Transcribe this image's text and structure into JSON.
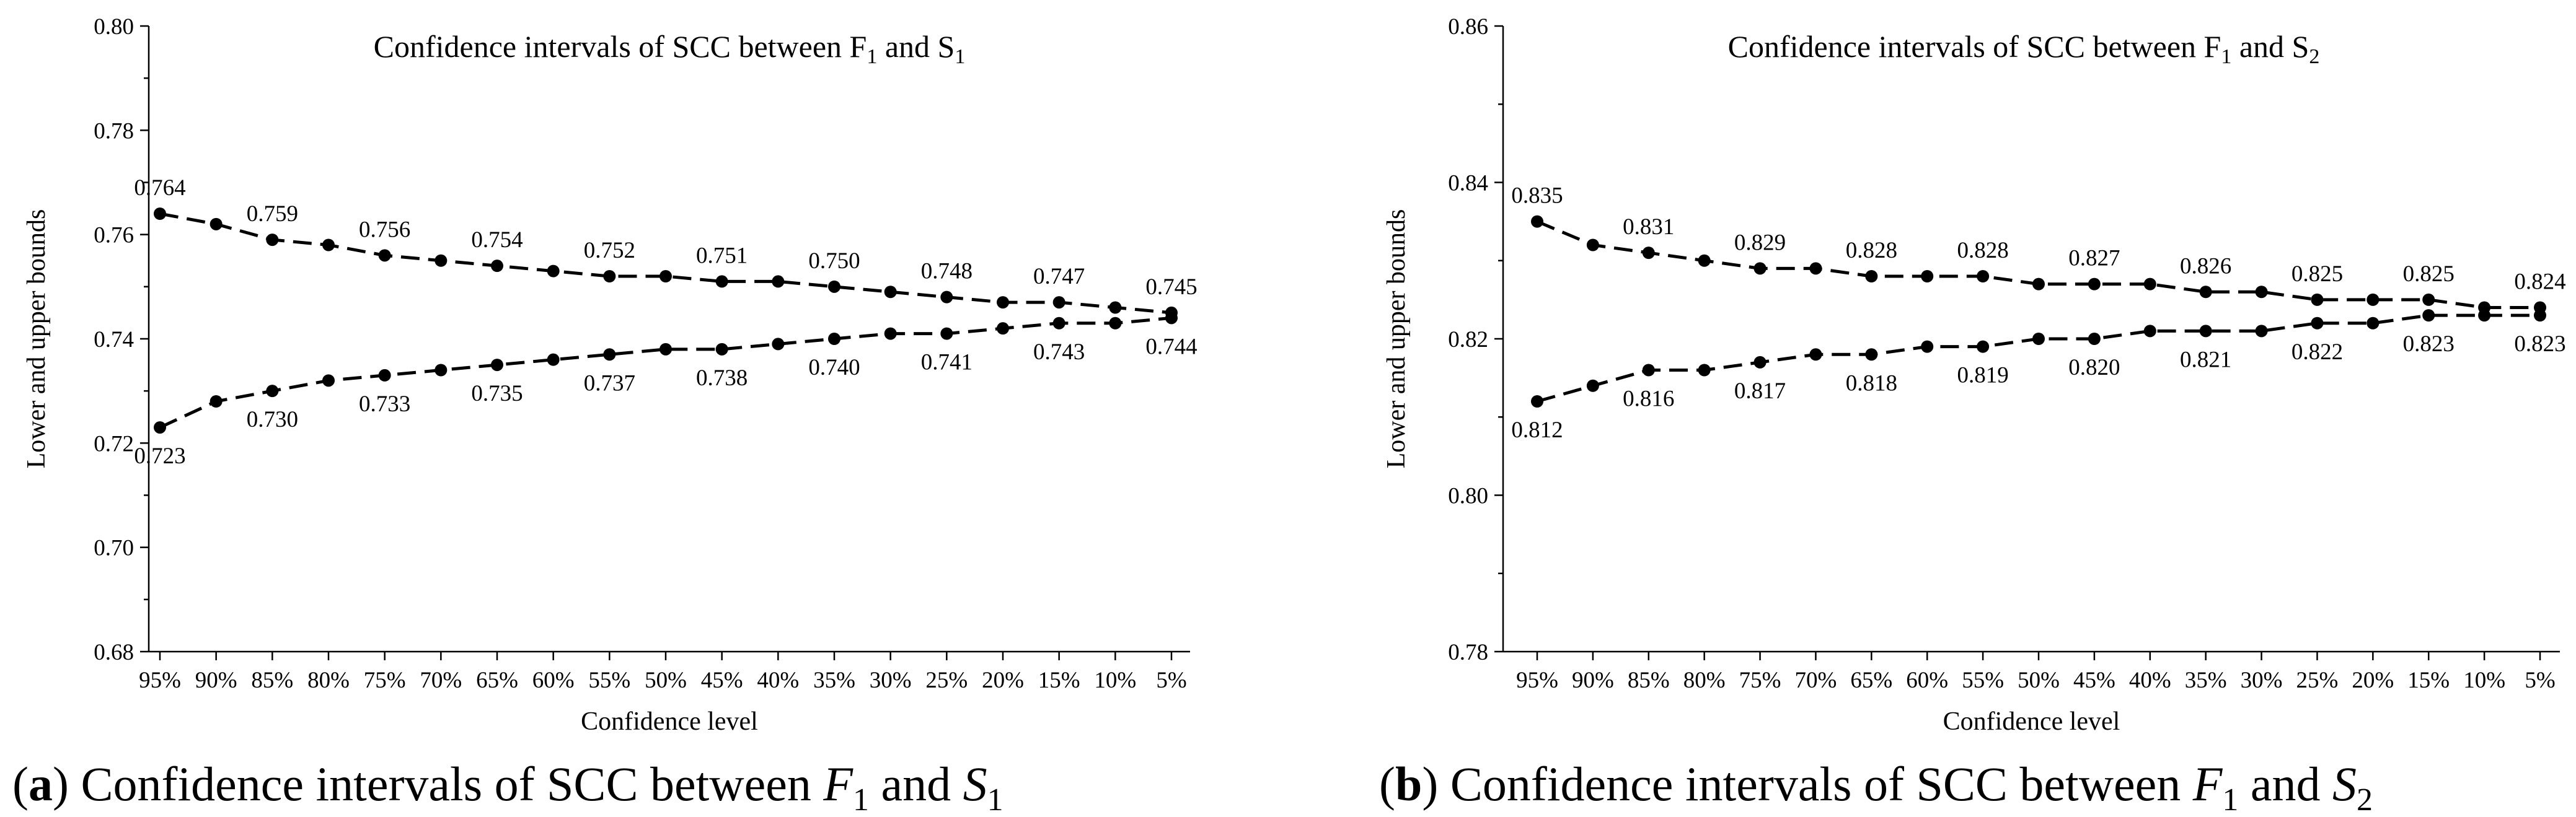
{
  "chart_data": [
    {
      "type": "line",
      "title": "Confidence intervals of SCC between F1 and S1",
      "title_parts": {
        "prefix": "Confidence intervals of SCC between F",
        "sub1": "1",
        "mid": " and S",
        "sub2": "1"
      },
      "xlabel": "Confidence level",
      "ylabel": "Lower and upper bounds",
      "categories": [
        "95%",
        "90%",
        "85%",
        "80%",
        "75%",
        "70%",
        "65%",
        "60%",
        "55%",
        "50%",
        "45%",
        "40%",
        "35%",
        "30%",
        "25%",
        "20%",
        "15%",
        "10%",
        "5%"
      ],
      "ylim": [
        0.68,
        0.8
      ],
      "yticks": [
        "0.68",
        "0.70",
        "0.72",
        "0.74",
        "0.76",
        "0.78",
        "0.80"
      ],
      "series": [
        {
          "name": "Upper bound",
          "values": [
            0.764,
            0.762,
            0.759,
            0.758,
            0.756,
            0.755,
            0.754,
            0.753,
            0.752,
            0.752,
            0.751,
            0.751,
            0.75,
            0.749,
            0.748,
            0.747,
            0.747,
            0.746,
            0.745
          ]
        },
        {
          "name": "Lower bound",
          "values": [
            0.723,
            0.728,
            0.73,
            0.732,
            0.733,
            0.734,
            0.735,
            0.736,
            0.737,
            0.738,
            0.738,
            0.739,
            0.74,
            0.741,
            0.741,
            0.742,
            0.743,
            0.743,
            0.744
          ]
        }
      ],
      "data_labels": [
        {
          "series": 0,
          "index": 0,
          "text": "0.764"
        },
        {
          "series": 0,
          "index": 2,
          "text": "0.759"
        },
        {
          "series": 0,
          "index": 4,
          "text": "0.756"
        },
        {
          "series": 0,
          "index": 6,
          "text": "0.754"
        },
        {
          "series": 0,
          "index": 8,
          "text": "0.752"
        },
        {
          "series": 0,
          "index": 10,
          "text": "0.751"
        },
        {
          "series": 0,
          "index": 12,
          "text": "0.750"
        },
        {
          "series": 0,
          "index": 14,
          "text": "0.748"
        },
        {
          "series": 0,
          "index": 16,
          "text": "0.747"
        },
        {
          "series": 0,
          "index": 18,
          "text": "0.745"
        },
        {
          "series": 1,
          "index": 0,
          "text": "0.723"
        },
        {
          "series": 1,
          "index": 2,
          "text": "0.730"
        },
        {
          "series": 1,
          "index": 4,
          "text": "0.733"
        },
        {
          "series": 1,
          "index": 6,
          "text": "0.735"
        },
        {
          "series": 1,
          "index": 8,
          "text": "0.737"
        },
        {
          "series": 1,
          "index": 10,
          "text": "0.738"
        },
        {
          "series": 1,
          "index": 12,
          "text": "0.740"
        },
        {
          "series": 1,
          "index": 14,
          "text": "0.741"
        },
        {
          "series": 1,
          "index": 16,
          "text": "0.743"
        },
        {
          "series": 1,
          "index": 18,
          "text": "0.744"
        }
      ],
      "caption": {
        "label": "a",
        "text": "Confidence intervals of SCC between",
        "var1": "F",
        "sub1": "1",
        "and": "and",
        "var2": "S",
        "sub2": "1"
      }
    },
    {
      "type": "line",
      "title": "Confidence intervals of SCC between F1 and S2",
      "title_parts": {
        "prefix": "Confidence intervals of SCC between F",
        "sub1": "1",
        "mid": " and S",
        "sub2": "2"
      },
      "xlabel": "Confidence level",
      "ylabel": "Lower and upper bounds",
      "categories": [
        "95%",
        "90%",
        "85%",
        "80%",
        "75%",
        "70%",
        "65%",
        "60%",
        "55%",
        "50%",
        "45%",
        "40%",
        "35%",
        "30%",
        "25%",
        "20%",
        "15%",
        "10%",
        "5%"
      ],
      "ylim": [
        0.78,
        0.86
      ],
      "yticks": [
        "0.78",
        "0.80",
        "0.82",
        "0.84",
        "0.86"
      ],
      "series": [
        {
          "name": "Upper bound",
          "values": [
            0.835,
            0.832,
            0.831,
            0.83,
            0.829,
            0.829,
            0.828,
            0.828,
            0.828,
            0.827,
            0.827,
            0.827,
            0.826,
            0.826,
            0.825,
            0.825,
            0.825,
            0.824,
            0.824
          ]
        },
        {
          "name": "Lower bound",
          "values": [
            0.812,
            0.814,
            0.816,
            0.816,
            0.817,
            0.818,
            0.818,
            0.819,
            0.819,
            0.82,
            0.82,
            0.821,
            0.821,
            0.821,
            0.822,
            0.822,
            0.823,
            0.823,
            0.823
          ]
        }
      ],
      "data_labels": [
        {
          "series": 0,
          "index": 0,
          "text": "0.835"
        },
        {
          "series": 0,
          "index": 2,
          "text": "0.831"
        },
        {
          "series": 0,
          "index": 4,
          "text": "0.829"
        },
        {
          "series": 0,
          "index": 6,
          "text": "0.828"
        },
        {
          "series": 0,
          "index": 8,
          "text": "0.828"
        },
        {
          "series": 0,
          "index": 10,
          "text": "0.827"
        },
        {
          "series": 0,
          "index": 12,
          "text": "0.826"
        },
        {
          "series": 0,
          "index": 14,
          "text": "0.825"
        },
        {
          "series": 0,
          "index": 16,
          "text": "0.825"
        },
        {
          "series": 0,
          "index": 18,
          "text": "0.824"
        },
        {
          "series": 1,
          "index": 0,
          "text": "0.812"
        },
        {
          "series": 1,
          "index": 2,
          "text": "0.816"
        },
        {
          "series": 1,
          "index": 4,
          "text": "0.817"
        },
        {
          "series": 1,
          "index": 6,
          "text": "0.818"
        },
        {
          "series": 1,
          "index": 8,
          "text": "0.819"
        },
        {
          "series": 1,
          "index": 10,
          "text": "0.820"
        },
        {
          "series": 1,
          "index": 12,
          "text": "0.821"
        },
        {
          "series": 1,
          "index": 14,
          "text": "0.822"
        },
        {
          "series": 1,
          "index": 16,
          "text": "0.823"
        },
        {
          "series": 1,
          "index": 18,
          "text": "0.823"
        }
      ],
      "caption": {
        "label": "b",
        "text": "Confidence intervals of SCC between",
        "var1": "F",
        "sub1": "1",
        "and": "and",
        "var2": "S",
        "sub2": "2"
      }
    }
  ]
}
